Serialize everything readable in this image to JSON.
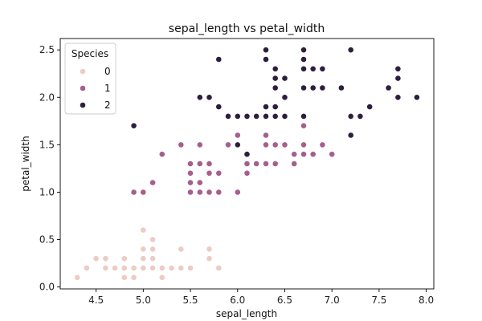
{
  "chart_data": {
    "type": "scatter",
    "title": "sepal_length vs petal_width",
    "xlabel": "sepal_length",
    "ylabel": "petal_width",
    "xlim": [
      4.12,
      8.08
    ],
    "ylim": [
      -0.02,
      2.62
    ],
    "xticks": [
      "4.5",
      "5.0",
      "5.5",
      "6.0",
      "6.5",
      "7.0",
      "7.5",
      "8.0"
    ],
    "yticks": [
      "0.0",
      "0.5",
      "1.0",
      "1.5",
      "2.0",
      "2.5"
    ],
    "legend": {
      "title": "Species",
      "position": "top-left"
    },
    "series": [
      {
        "name": "0",
        "color": "#ecccc5",
        "points": [
          [
            4.3,
            0.1
          ],
          [
            4.4,
            0.2
          ],
          [
            4.5,
            0.3
          ],
          [
            4.6,
            0.2
          ],
          [
            4.6,
            0.3
          ],
          [
            4.7,
            0.2
          ],
          [
            4.8,
            0.1
          ],
          [
            4.8,
            0.2
          ],
          [
            4.8,
            0.3
          ],
          [
            4.9,
            0.1
          ],
          [
            4.9,
            0.2
          ],
          [
            5.0,
            0.2
          ],
          [
            5.0,
            0.3
          ],
          [
            5.0,
            0.4
          ],
          [
            5.0,
            0.6
          ],
          [
            5.1,
            0.2
          ],
          [
            5.1,
            0.3
          ],
          [
            5.1,
            0.4
          ],
          [
            5.1,
            0.5
          ],
          [
            5.2,
            0.1
          ],
          [
            5.2,
            0.2
          ],
          [
            5.3,
            0.2
          ],
          [
            5.4,
            0.2
          ],
          [
            5.4,
            0.4
          ],
          [
            5.5,
            0.2
          ],
          [
            5.7,
            0.3
          ],
          [
            5.7,
            0.4
          ],
          [
            5.8,
            0.2
          ]
        ]
      },
      {
        "name": "1",
        "color": "#a55f8e",
        "points": [
          [
            4.9,
            1.0
          ],
          [
            5.0,
            1.0
          ],
          [
            5.1,
            1.1
          ],
          [
            5.2,
            1.4
          ],
          [
            5.4,
            1.5
          ],
          [
            5.5,
            1.0
          ],
          [
            5.5,
            1.1
          ],
          [
            5.5,
            1.2
          ],
          [
            5.5,
            1.3
          ],
          [
            5.6,
            1.0
          ],
          [
            5.6,
            1.1
          ],
          [
            5.6,
            1.3
          ],
          [
            5.6,
            1.5
          ],
          [
            5.7,
            1.0
          ],
          [
            5.7,
            1.2
          ],
          [
            5.7,
            1.3
          ],
          [
            5.8,
            1.0
          ],
          [
            5.8,
            1.2
          ],
          [
            5.9,
            1.5
          ],
          [
            6.0,
            1.0
          ],
          [
            6.0,
            1.5
          ],
          [
            6.0,
            1.6
          ],
          [
            6.1,
            1.2
          ],
          [
            6.1,
            1.3
          ],
          [
            6.1,
            1.4
          ],
          [
            6.2,
            1.3
          ],
          [
            6.3,
            1.3
          ],
          [
            6.3,
            1.5
          ],
          [
            6.3,
            1.6
          ],
          [
            6.4,
            1.3
          ],
          [
            6.4,
            1.5
          ],
          [
            6.5,
            1.5
          ],
          [
            6.6,
            1.3
          ],
          [
            6.6,
            1.4
          ],
          [
            6.7,
            1.4
          ],
          [
            6.7,
            1.5
          ],
          [
            6.7,
            1.7
          ],
          [
            6.8,
            1.4
          ],
          [
            6.9,
            1.5
          ],
          [
            7.0,
            1.4
          ]
        ]
      },
      {
        "name": "2",
        "color": "#2d1e3e",
        "points": [
          [
            4.9,
            1.7
          ],
          [
            5.6,
            2.0
          ],
          [
            5.7,
            2.0
          ],
          [
            5.8,
            1.9
          ],
          [
            5.8,
            2.4
          ],
          [
            5.9,
            1.8
          ],
          [
            6.0,
            1.5
          ],
          [
            6.0,
            1.8
          ],
          [
            6.1,
            1.4
          ],
          [
            6.1,
            1.8
          ],
          [
            6.2,
            1.8
          ],
          [
            6.3,
            1.8
          ],
          [
            6.3,
            1.9
          ],
          [
            6.3,
            2.4
          ],
          [
            6.3,
            2.5
          ],
          [
            6.4,
            1.8
          ],
          [
            6.4,
            1.9
          ],
          [
            6.4,
            2.1
          ],
          [
            6.4,
            2.2
          ],
          [
            6.4,
            2.3
          ],
          [
            6.5,
            1.8
          ],
          [
            6.5,
            2.0
          ],
          [
            6.5,
            2.2
          ],
          [
            6.7,
            1.8
          ],
          [
            6.7,
            2.1
          ],
          [
            6.7,
            2.3
          ],
          [
            6.7,
            2.4
          ],
          [
            6.7,
            2.5
          ],
          [
            6.8,
            2.1
          ],
          [
            6.8,
            2.3
          ],
          [
            6.9,
            2.1
          ],
          [
            6.9,
            2.3
          ],
          [
            7.1,
            2.1
          ],
          [
            7.2,
            1.6
          ],
          [
            7.2,
            1.8
          ],
          [
            7.2,
            2.5
          ],
          [
            7.3,
            1.8
          ],
          [
            7.4,
            1.9
          ],
          [
            7.6,
            2.1
          ],
          [
            7.7,
            2.0
          ],
          [
            7.7,
            2.2
          ],
          [
            7.7,
            2.3
          ],
          [
            7.9,
            2.0
          ]
        ]
      }
    ]
  }
}
